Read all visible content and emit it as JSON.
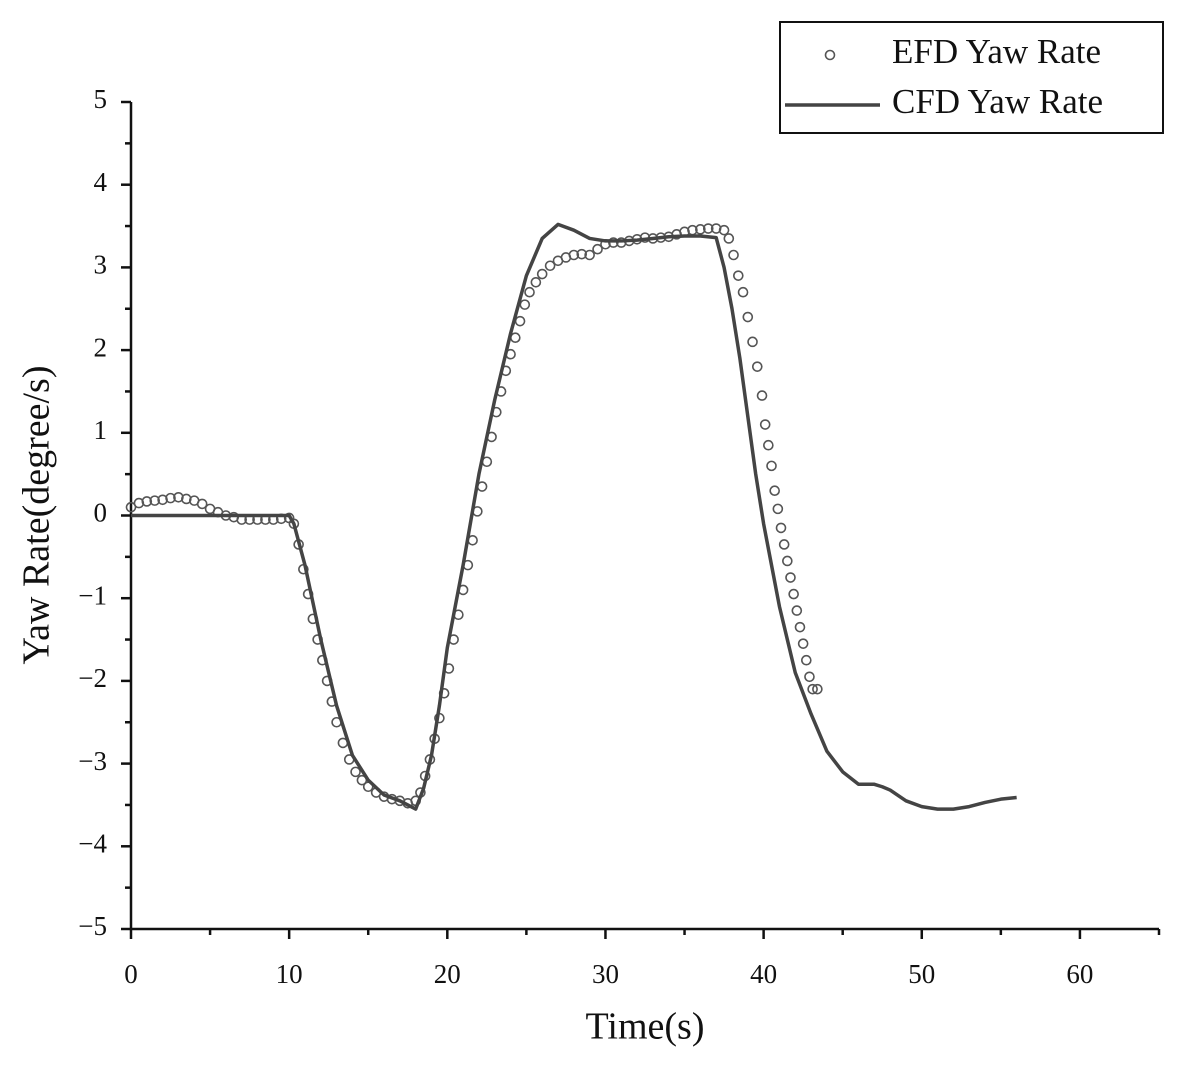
{
  "chart_data": {
    "type": "line",
    "xlabel": "Time(s)",
    "ylabel": "Yaw Rate(degree/s)",
    "xlim": [
      0,
      65
    ],
    "ylim": [
      -5,
      5
    ],
    "xticks": [
      0,
      10,
      20,
      30,
      40,
      50,
      60
    ],
    "xminorticks": [
      5,
      15,
      25,
      35,
      45,
      55,
      65
    ],
    "yticks": [
      {
        "value": -5,
        "label": "−5"
      },
      {
        "value": -4,
        "label": "−4"
      },
      {
        "value": -3,
        "label": "−3"
      },
      {
        "value": -2,
        "label": "−2"
      },
      {
        "value": -1,
        "label": "−1"
      },
      0,
      1,
      2,
      3,
      4,
      5
    ],
    "yminorticks": [
      -4.5,
      -3.5,
      -2.5,
      -1.5,
      -0.5,
      0.5,
      1.5,
      2.5,
      3.5,
      4.5
    ],
    "legend": "upper right",
    "series": [
      {
        "name": "EFD Yaw Rate",
        "type": "scatter",
        "color": "#555555",
        "x": [
          0,
          0.5,
          1,
          1.5,
          2,
          2.5,
          3,
          3.5,
          4,
          4.5,
          5,
          5.5,
          6,
          6.5,
          7,
          7.5,
          8,
          8.5,
          9,
          9.5,
          10,
          10.3,
          10.6,
          10.9,
          11.2,
          11.5,
          11.8,
          12.1,
          12.4,
          12.7,
          13,
          13.4,
          13.8,
          14.2,
          14.6,
          15,
          15.5,
          16,
          16.5,
          17,
          17.5,
          18,
          18.3,
          18.6,
          18.9,
          19.2,
          19.5,
          19.8,
          20.1,
          20.4,
          20.7,
          21,
          21.3,
          21.6,
          21.9,
          22.2,
          22.5,
          22.8,
          23.1,
          23.4,
          23.7,
          24,
          24.3,
          24.6,
          24.9,
          25.2,
          25.6,
          26,
          26.5,
          27,
          27.5,
          28,
          28.5,
          29,
          29.5,
          30,
          30.5,
          31,
          31.5,
          32,
          32.5,
          33,
          33.5,
          34,
          34.5,
          35,
          35.5,
          36,
          36.5,
          37,
          37.5,
          37.8,
          38.1,
          38.4,
          38.7,
          39,
          39.3,
          39.6,
          39.9,
          40.1,
          40.3,
          40.5,
          40.7,
          40.9,
          41.1,
          41.3,
          41.5,
          41.7,
          41.9,
          42.1,
          42.3,
          42.5,
          42.7,
          42.9,
          43.1,
          43.4
        ],
        "values": [
          0.1,
          0.15,
          0.17,
          0.18,
          0.19,
          0.21,
          0.22,
          0.2,
          0.18,
          0.14,
          0.08,
          0.04,
          0,
          -0.02,
          -0.05,
          -0.05,
          -0.05,
          -0.05,
          -0.05,
          -0.04,
          -0.03,
          -0.1,
          -0.35,
          -0.65,
          -0.95,
          -1.25,
          -1.5,
          -1.75,
          -2,
          -2.25,
          -2.5,
          -2.75,
          -2.95,
          -3.1,
          -3.2,
          -3.28,
          -3.35,
          -3.4,
          -3.43,
          -3.45,
          -3.48,
          -3.45,
          -3.35,
          -3.15,
          -2.95,
          -2.7,
          -2.45,
          -2.15,
          -1.85,
          -1.5,
          -1.2,
          -0.9,
          -0.6,
          -0.3,
          0.05,
          0.35,
          0.65,
          0.95,
          1.25,
          1.5,
          1.75,
          1.95,
          2.15,
          2.35,
          2.55,
          2.7,
          2.82,
          2.92,
          3.02,
          3.08,
          3.12,
          3.15,
          3.16,
          3.15,
          3.22,
          3.28,
          3.3,
          3.3,
          3.32,
          3.34,
          3.36,
          3.35,
          3.36,
          3.37,
          3.4,
          3.43,
          3.45,
          3.46,
          3.47,
          3.47,
          3.45,
          3.35,
          3.15,
          2.9,
          2.7,
          2.4,
          2.1,
          1.8,
          1.45,
          1.1,
          0.85,
          0.6,
          0.3,
          0.08,
          -0.15,
          -0.35,
          -0.55,
          -0.75,
          -0.95,
          -1.15,
          -1.35,
          -1.55,
          -1.75,
          -1.95,
          -2.1,
          -2.1
        ]
      },
      {
        "name": "CFD Yaw Rate",
        "type": "line",
        "color": "#444444",
        "x": [
          0,
          10,
          10.3,
          11,
          12,
          13,
          14,
          15,
          16,
          17,
          18,
          18.5,
          19,
          19.5,
          20,
          21,
          22,
          23,
          24,
          25,
          26,
          27,
          28,
          29,
          30,
          31,
          32,
          33,
          34,
          35,
          36,
          37,
          37.5,
          38,
          38.5,
          39,
          39.5,
          40,
          40.5,
          41,
          41.5,
          42,
          43,
          44,
          45,
          46,
          46.5,
          47,
          47.5,
          48,
          49,
          50,
          51,
          52,
          53,
          54,
          55,
          56
        ],
        "values": [
          0,
          0,
          -0.1,
          -0.6,
          -1.5,
          -2.3,
          -2.9,
          -3.2,
          -3.38,
          -3.45,
          -3.55,
          -3.3,
          -2.9,
          -2.3,
          -1.6,
          -0.6,
          0.5,
          1.4,
          2.2,
          2.9,
          3.35,
          3.52,
          3.45,
          3.35,
          3.32,
          3.32,
          3.33,
          3.35,
          3.37,
          3.38,
          3.38,
          3.36,
          3,
          2.5,
          1.9,
          1.2,
          0.5,
          -0.1,
          -0.6,
          -1.1,
          -1.5,
          -1.9,
          -2.4,
          -2.85,
          -3.1,
          -3.25,
          -3.25,
          -3.25,
          -3.28,
          -3.32,
          -3.45,
          -3.52,
          -3.55,
          -3.55,
          -3.52,
          -3.47,
          -3.43,
          -3.41
        ]
      }
    ]
  }
}
